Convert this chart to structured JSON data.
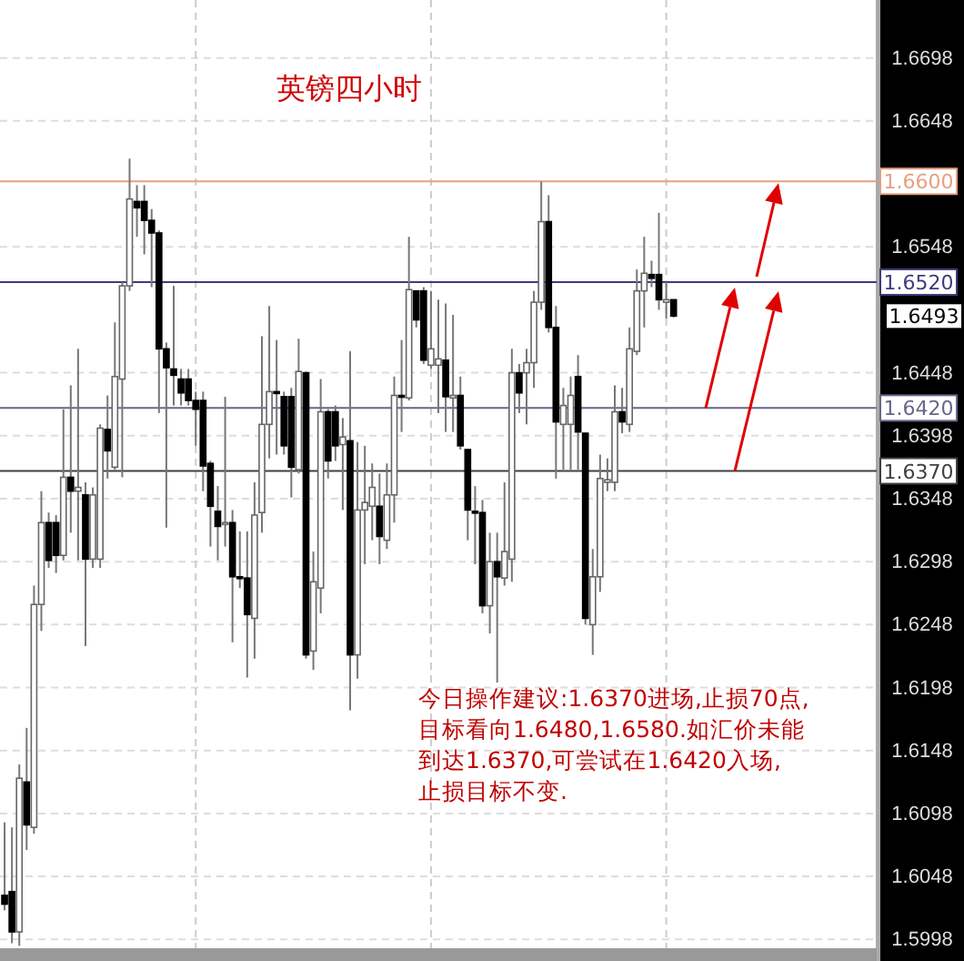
{
  "chart_data": {
    "type": "candlestick",
    "title": "英镑四小时",
    "categories": [
      null,
      null,
      null,
      null,
      null,
      null,
      null,
      null,
      null,
      null,
      null,
      null,
      null,
      null,
      null,
      null,
      null,
      null,
      null,
      null,
      null,
      null,
      null,
      null,
      null,
      null,
      null,
      null,
      null,
      null,
      null,
      null,
      null,
      null,
      null,
      null,
      null,
      null,
      null,
      null,
      null,
      null,
      null,
      null,
      null,
      null,
      null,
      null,
      null,
      null,
      null,
      null,
      null,
      null,
      null,
      null,
      null,
      null,
      null,
      null,
      null,
      null,
      null,
      null,
      null,
      null,
      null,
      null,
      null,
      null,
      null,
      null,
      null,
      null,
      null,
      null,
      null,
      null,
      null,
      null,
      null,
      null,
      null,
      null,
      null,
      null,
      null,
      null,
      null,
      null,
      null,
      null,
      null,
      null,
      null,
      null,
      null,
      null,
      null,
      null,
      null,
      null,
      null,
      null,
      null,
      null,
      null,
      null,
      null,
      null,
      null,
      null,
      null,
      null,
      null,
      null,
      null,
      null,
      null
    ],
    "ohlc": [
      [
        1.6033,
        1.6091,
        1.6021,
        1.6026
      ],
      [
        1.6036,
        1.6087,
        1.5995,
        1.6004
      ],
      [
        1.6004,
        1.6137,
        1.5993,
        1.6126
      ],
      [
        1.6123,
        1.6166,
        1.6069,
        1.6089
      ],
      [
        1.6087,
        1.6279,
        1.6082,
        1.6264
      ],
      [
        1.6264,
        1.6354,
        1.6243,
        1.6329
      ],
      [
        1.6329,
        1.6337,
        1.6293,
        1.6299
      ],
      [
        1.6329,
        1.6335,
        1.6289,
        1.6303
      ],
      [
        1.6303,
        1.6419,
        1.6299,
        1.6365
      ],
      [
        1.6365,
        1.6438,
        1.6321,
        1.6354
      ],
      [
        1.6354,
        1.6467,
        1.6299,
        1.6357
      ],
      [
        1.6351,
        1.6361,
        1.6231,
        1.63
      ],
      [
        1.63,
        1.6357,
        1.6293,
        1.6351
      ],
      [
        1.63,
        1.6407,
        1.6293,
        1.6404
      ],
      [
        1.6403,
        1.643,
        1.6364,
        1.6386
      ],
      [
        1.6373,
        1.6488,
        1.6371,
        1.6445
      ],
      [
        1.6443,
        1.652,
        1.6365,
        1.6517
      ],
      [
        1.6517,
        1.6618,
        1.6513,
        1.6586
      ],
      [
        1.6584,
        1.6597,
        1.6556,
        1.6579
      ],
      [
        1.6584,
        1.6597,
        1.6542,
        1.6569
      ],
      [
        1.6569,
        1.6578,
        1.6516,
        1.6559
      ],
      [
        1.6559,
        1.6561,
        1.6416,
        1.6467
      ],
      [
        1.6467,
        1.6472,
        1.6325,
        1.6452
      ],
      [
        1.6451,
        1.6517,
        1.6422,
        1.6446
      ],
      [
        1.6443,
        1.6451,
        1.6422,
        1.6432
      ],
      [
        1.6443,
        1.6451,
        1.6422,
        1.6426
      ],
      [
        1.6426,
        1.6433,
        1.639,
        1.6419
      ],
      [
        1.6426,
        1.6433,
        1.6354,
        1.6374
      ],
      [
        1.6376,
        1.6378,
        1.631,
        1.6342
      ],
      [
        1.6338,
        1.6358,
        1.6299,
        1.6326
      ],
      [
        1.6328,
        1.6429,
        1.631,
        1.6329
      ],
      [
        1.6329,
        1.6339,
        1.6234,
        1.6286
      ],
      [
        1.6286,
        1.6322,
        1.6277,
        1.6285
      ],
      [
        1.6285,
        1.6322,
        1.6206,
        1.6256
      ],
      [
        1.6253,
        1.6361,
        1.6221,
        1.6335
      ],
      [
        1.6337,
        1.6477,
        1.6321,
        1.6407
      ],
      [
        1.6407,
        1.6501,
        1.638,
        1.6433
      ],
      [
        1.6433,
        1.6474,
        1.6383,
        1.6432
      ],
      [
        1.6429,
        1.6433,
        1.6383,
        1.639
      ],
      [
        1.6429,
        1.6436,
        1.6349,
        1.6373
      ],
      [
        1.6371,
        1.6475,
        1.6368,
        1.6449
      ],
      [
        1.6448,
        1.6449,
        1.6221,
        1.6224
      ],
      [
        1.6227,
        1.6306,
        1.6212,
        1.6282
      ],
      [
        1.6277,
        1.6443,
        1.6257,
        1.6417
      ],
      [
        1.6417,
        1.6419,
        1.6364,
        1.6378
      ],
      [
        1.6417,
        1.6422,
        1.6378,
        1.639
      ],
      [
        1.6391,
        1.6412,
        1.6339,
        1.6397
      ],
      [
        1.6394,
        1.6465,
        1.618,
        1.6224
      ],
      [
        1.6224,
        1.6393,
        1.6205,
        1.6339
      ],
      [
        1.6339,
        1.639,
        1.6296,
        1.6345
      ],
      [
        1.6342,
        1.6376,
        1.6315,
        1.6357
      ],
      [
        1.6342,
        1.6368,
        1.6296,
        1.6318
      ],
      [
        1.6315,
        1.6376,
        1.6308,
        1.6351
      ],
      [
        1.6351,
        1.6445,
        1.6329,
        1.643
      ],
      [
        1.643,
        1.6474,
        1.6401,
        1.6429
      ],
      [
        1.6428,
        1.6556,
        1.6426,
        1.6514
      ],
      [
        1.6513,
        1.6513,
        1.6484,
        1.649
      ],
      [
        1.6513,
        1.6516,
        1.6455,
        1.6458
      ],
      [
        1.6454,
        1.6513,
        1.6451,
        1.6467
      ],
      [
        1.6454,
        1.6506,
        1.6416,
        1.6459
      ],
      [
        1.6458,
        1.6503,
        1.6401,
        1.6429
      ],
      [
        1.6428,
        1.6494,
        1.6401,
        1.643
      ],
      [
        1.643,
        1.6445,
        1.6387,
        1.639
      ],
      [
        1.6387,
        1.6387,
        1.6315,
        1.6339
      ],
      [
        1.6338,
        1.6358,
        1.6296,
        1.6337
      ],
      [
        1.6337,
        1.6347,
        1.6257,
        1.6263
      ],
      [
        1.6263,
        1.6321,
        1.6241,
        1.6298
      ],
      [
        1.6298,
        1.6321,
        1.6202,
        1.6286
      ],
      [
        1.6285,
        1.6361,
        1.6279,
        1.6306
      ],
      [
        1.63,
        1.6467,
        1.6282,
        1.6448
      ],
      [
        1.6448,
        1.6455,
        1.6416,
        1.6432
      ],
      [
        1.6448,
        1.6467,
        1.6407,
        1.6456
      ],
      [
        1.6456,
        1.6513,
        1.6436,
        1.6504
      ],
      [
        1.6504,
        1.66,
        1.6498,
        1.6568
      ],
      [
        1.6568,
        1.6589,
        1.648,
        1.6484
      ],
      [
        1.6484,
        1.6501,
        1.6364,
        1.6409
      ],
      [
        1.6407,
        1.6436,
        1.6371,
        1.6422
      ],
      [
        1.6407,
        1.6445,
        1.6371,
        1.643
      ],
      [
        1.6445,
        1.6462,
        1.6371,
        1.6401
      ],
      [
        1.64,
        1.64,
        1.6248,
        1.6253
      ],
      [
        1.6248,
        1.6308,
        1.6224,
        1.6286
      ],
      [
        1.6286,
        1.6383,
        1.6274,
        1.6364
      ],
      [
        1.6361,
        1.638,
        1.6354,
        1.6363
      ],
      [
        1.6361,
        1.6438,
        1.6354,
        1.6417
      ],
      [
        1.6417,
        1.6436,
        1.64,
        1.6409
      ],
      [
        1.6407,
        1.6484,
        1.6401,
        1.6467
      ],
      [
        1.6465,
        1.653,
        1.6462,
        1.6513
      ],
      [
        1.6513,
        1.6556,
        1.6484,
        1.6527
      ],
      [
        1.6526,
        1.6537,
        1.6516,
        1.6523
      ],
      [
        1.6526,
        1.6575,
        1.6498,
        1.6506
      ],
      [
        1.6504,
        1.652,
        1.6491,
        1.6506
      ],
      [
        1.6506,
        1.6506,
        1.6492,
        1.6493
      ],
      null,
      null,
      null,
      null,
      null,
      null,
      null,
      null,
      null,
      null,
      null,
      null,
      null,
      null,
      null,
      null,
      null,
      null,
      null,
      null,
      null,
      null,
      null,
      null,
      null,
      null,
      null
    ],
    "ylim": [
      1.5991,
      1.6744
    ],
    "yticks": [
      1.6698,
      1.6648,
      1.6548,
      1.6448,
      1.6398,
      1.6348,
      1.6298,
      1.6248,
      1.6198,
      1.6148,
      1.6098,
      1.6048,
      1.5998
    ],
    "grid": true,
    "ref_lines": [
      {
        "axis": "y",
        "value": 1.66,
        "label": "1.6600",
        "color": "#e8a080"
      },
      {
        "axis": "y",
        "value": 1.652,
        "label": "1.6520",
        "color": "#3c3c7c"
      },
      {
        "axis": "y",
        "value": 1.642,
        "label": "1.6420",
        "color": "#66668a"
      },
      {
        "axis": "y",
        "value": 1.637,
        "label": "1.6370",
        "color": "#404040"
      }
    ],
    "annotations": [
      "今日操作建议:1.6370进场,止损70点,",
      "目标看向1.6480,1.6580.如汇价未能",
      "到达1.6370,可尝试在1.6420入场,",
      "止损目标不变.",
      "1.6493"
    ]
  }
}
